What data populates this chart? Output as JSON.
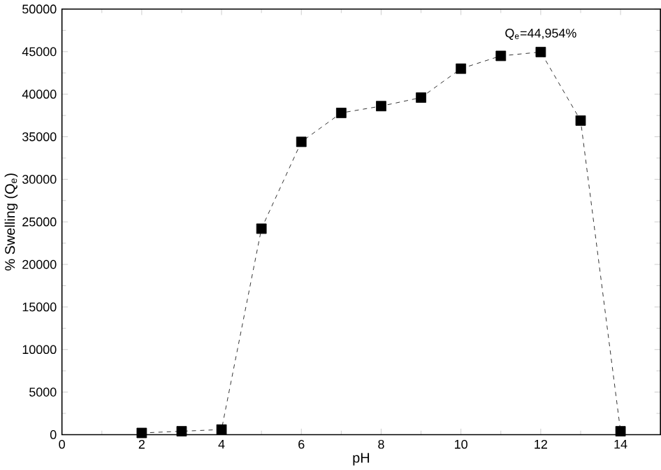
{
  "chart_data": {
    "type": "line",
    "xlabel": "pH",
    "ylabel": "% Swelling (Q$_{e}$)",
    "x": [
      2,
      3,
      4,
      5,
      6,
      7,
      8,
      9,
      10,
      11,
      12,
      13,
      14
    ],
    "series": [
      {
        "color": "#000000",
        "values": [
          200,
          400,
          600,
          24200,
          34400,
          37800,
          38600,
          39600,
          43000,
          44500,
          44954,
          36900,
          400
        ]
      }
    ],
    "marker": "square",
    "line_style": "dashed",
    "xlim": [
      0,
      15
    ],
    "xticks": [
      0,
      2,
      4,
      6,
      8,
      10,
      12,
      14
    ],
    "ylim": [
      0,
      50000
    ],
    "yticks": [
      0,
      5000,
      10000,
      15000,
      20000,
      25000,
      30000,
      35000,
      40000,
      45000,
      50000
    ],
    "annotations": [
      {
        "text": "Q$_{e}$=44,954%",
        "x": 12,
        "y": 44954
      }
    ]
  }
}
